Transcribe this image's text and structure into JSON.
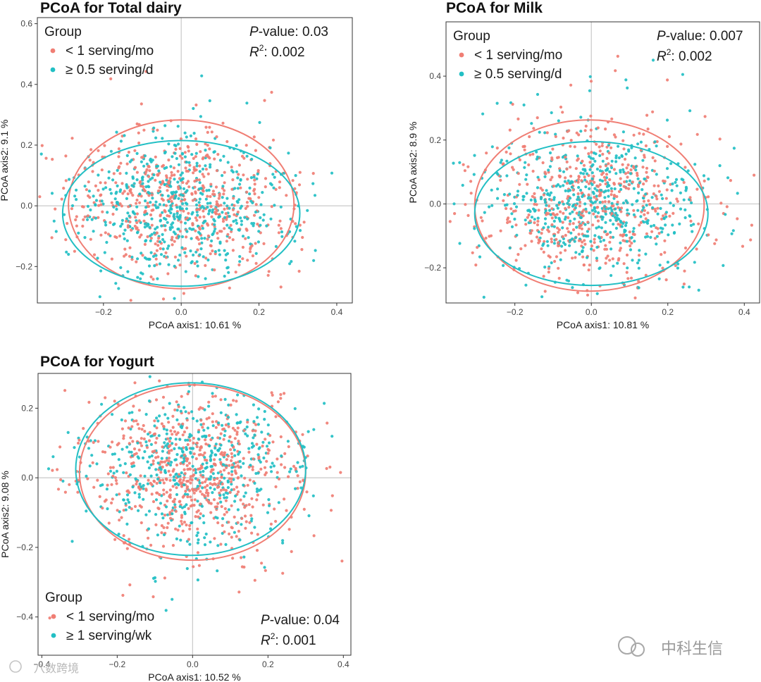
{
  "colors": {
    "low": "#F07E74",
    "high": "#22BFC4"
  },
  "watermark": {
    "brand": "中科生信",
    "corner": "八数跨境"
  },
  "chart_data": [
    {
      "type": "scatter",
      "title": "PCoA for Total dairy",
      "xlabel": "PCoA axis1:  10.61 %",
      "ylabel": "PCoA axis2:  9.1 %",
      "xlim": [
        -0.37,
        0.44
      ],
      "ylim": [
        -0.32,
        0.62
      ],
      "xticks": [
        -0.2,
        0.0,
        0.2,
        0.4
      ],
      "xtick_labels": [
        "−0.2",
        "0.0",
        "0.2",
        "0.4"
      ],
      "yticks": [
        -0.2,
        0.0,
        0.2,
        0.4,
        0.6
      ],
      "ytick_labels": [
        "−0.2",
        "0.0",
        "0.2",
        "0.4",
        "0.6"
      ],
      "legend": {
        "title": "Group",
        "position": "top-left",
        "entries": [
          "< 1 serving/mo",
          "≥ 0.5 serving/d"
        ]
      },
      "stats": {
        "p_label": "P",
        "p_rest": "-value: 0.03",
        "r2_label": "R",
        "r2_sup": "2",
        "r2_rest": ": 0.002",
        "position": "top-right"
      },
      "series": [
        {
          "name": "< 1 serving/mo",
          "n": 560,
          "center": [
            0.0,
            0.0
          ],
          "spread": [
            0.145,
            0.12
          ],
          "ellipse": {
            "cx": 0.0,
            "cy": 0.005,
            "rx": 0.29,
            "ry": 0.278
          }
        },
        {
          "name": "≥ 0.5 serving/d",
          "n": 560,
          "center": [
            0.0,
            -0.01
          ],
          "spread": [
            0.145,
            0.11
          ],
          "ellipse": {
            "cx": 0.0,
            "cy": -0.025,
            "rx": 0.305,
            "ry": 0.24
          }
        }
      ]
    },
    {
      "type": "scatter",
      "title": "PCoA for Milk",
      "xlabel": "PCoA axis1:  10.81 %",
      "ylabel": "PCoA axis2:  8.9 %",
      "xlim": [
        -0.38,
        0.44
      ],
      "ylim": [
        -0.31,
        0.57
      ],
      "xticks": [
        -0.2,
        0.0,
        0.2,
        0.4
      ],
      "xtick_labels": [
        "−0.2",
        "0.0",
        "0.2",
        "0.4"
      ],
      "yticks": [
        -0.2,
        0.0,
        0.2,
        0.4
      ],
      "ytick_labels": [
        "−0.2",
        "0.0",
        "0.2",
        "0.4"
      ],
      "legend": {
        "title": "Group",
        "position": "top-left",
        "entries": [
          "< 1 serving/mo",
          "≥ 0.5 serving/d"
        ]
      },
      "stats": {
        "p_label": "P",
        "p_rest": "-value: 0.007",
        "r2_label": "R",
        "r2_sup": "2",
        "r2_rest": ": 0.002",
        "position": "top-right"
      },
      "series": [
        {
          "name": "< 1 serving/mo",
          "n": 560,
          "center": [
            0.0,
            0.0
          ],
          "spread": [
            0.15,
            0.12
          ],
          "ellipse": {
            "cx": -0.005,
            "cy": -0.005,
            "rx": 0.3,
            "ry": 0.268
          }
        },
        {
          "name": "≥ 0.5 serving/d",
          "n": 560,
          "center": [
            0.0,
            -0.01
          ],
          "spread": [
            0.15,
            0.11
          ],
          "ellipse": {
            "cx": 0.0,
            "cy": -0.03,
            "rx": 0.305,
            "ry": 0.225
          }
        }
      ]
    },
    {
      "type": "scatter",
      "title": "PCoA for Yogurt",
      "xlabel": "PCoA axis1:  10.52 %",
      "ylabel": "PCoA axis2:  9.08 %",
      "xlim": [
        -0.41,
        0.42
      ],
      "ylim": [
        -0.51,
        0.3
      ],
      "xticks": [
        -0.4,
        -0.2,
        0.0,
        0.2,
        0.4
      ],
      "xtick_labels": [
        "−0.4",
        "−0.2",
        "0.0",
        "0.2",
        "0.4"
      ],
      "yticks": [
        -0.4,
        -0.2,
        0.0,
        0.2
      ],
      "ytick_labels": [
        "−0.4",
        "−0.2",
        "0.0",
        "0.2"
      ],
      "legend": {
        "title": "Group",
        "position": "bottom-left",
        "entries": [
          "< 1 serving/mo",
          "≥ 1 serving/wk"
        ]
      },
      "stats": {
        "p_label": "P",
        "p_rest": "-value: 0.04",
        "r2_label": "R",
        "r2_sup": "2",
        "r2_rest": ": 0.001",
        "position": "bottom-right"
      },
      "series": [
        {
          "name": "< 1 serving/mo",
          "n": 650,
          "center": [
            0.0,
            0.02
          ],
          "spread": [
            0.15,
            0.12
          ],
          "ellipse": {
            "cx": 0.0,
            "cy": 0.015,
            "rx": 0.3,
            "ry": 0.252
          }
        },
        {
          "name": "≥ 1 serving/wk",
          "n": 500,
          "center": [
            0.0,
            0.03
          ],
          "spread": [
            0.15,
            0.11
          ],
          "ellipse": {
            "cx": -0.005,
            "cy": 0.025,
            "rx": 0.305,
            "ry": 0.248
          }
        }
      ]
    }
  ]
}
